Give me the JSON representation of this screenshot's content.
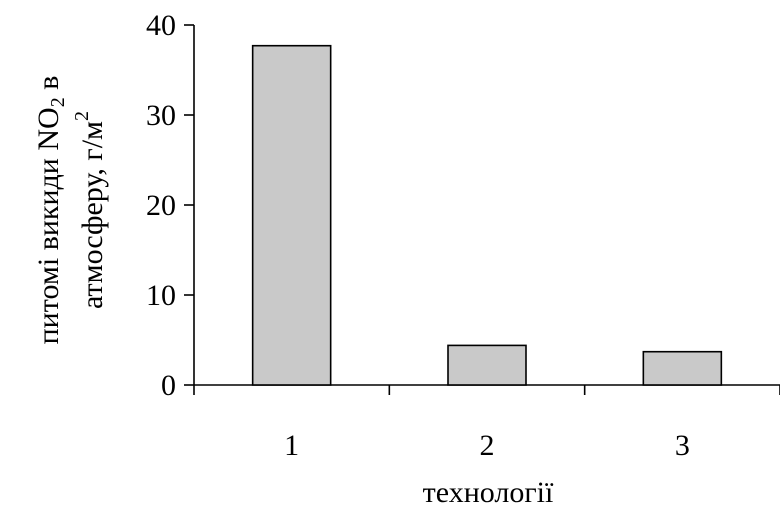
{
  "chart_data": {
    "type": "bar",
    "categories": [
      "1",
      "2",
      "3"
    ],
    "values": [
      37.7,
      4.4,
      3.7
    ],
    "title": "",
    "xlabel": "технології",
    "ylabel_line1": "питомі викиди NO",
    "ylabel_sub": "2",
    "ylabel_line1_end": " в",
    "ylabel_line2": "атмосферу, г/м",
    "ylabel_sup": "2",
    "ylim": [
      0,
      40
    ],
    "yticks": [
      "0",
      "10",
      "20",
      "30",
      "40"
    ],
    "grid": false,
    "legend": "none",
    "bar_color": "#c9c9c9"
  }
}
